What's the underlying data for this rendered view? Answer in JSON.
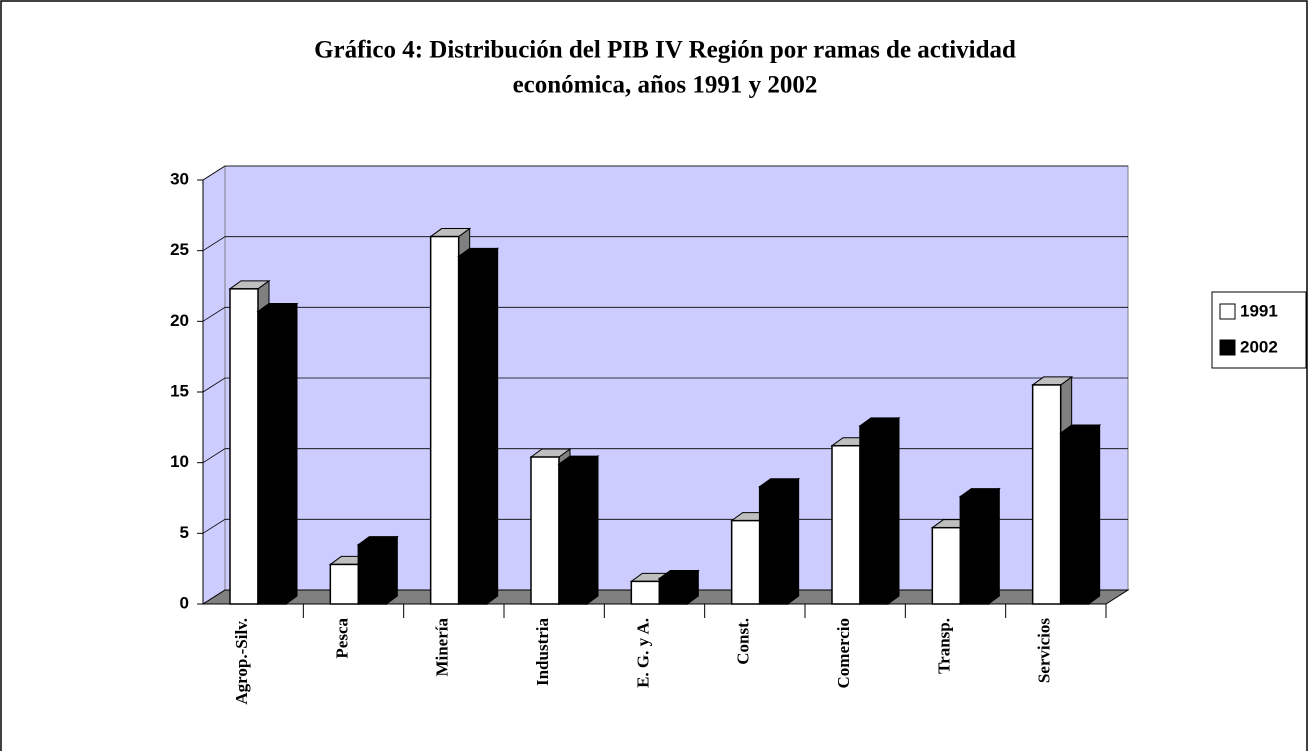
{
  "chart_data": {
    "type": "bar3d",
    "title": [
      "Gráfico 4: Distribución del PIB IV Región por ramas de actividad",
      "económica, años 1991 y 2002"
    ],
    "categories": [
      "Agrop.-Silv.",
      "Pesca",
      "Minería",
      "Industria",
      "E. G. y A.",
      "Const.",
      "Comercio",
      "Transp.",
      "Servicios"
    ],
    "series": [
      {
        "name": "1991",
        "color": "#ffffff",
        "values": [
          22.3,
          2.8,
          26.0,
          10.4,
          1.6,
          5.9,
          11.2,
          5.4,
          15.5
        ]
      },
      {
        "name": "2002",
        "color": "#000000",
        "values": [
          20.7,
          4.2,
          24.6,
          9.9,
          1.8,
          8.3,
          12.6,
          7.6,
          12.1
        ]
      }
    ],
    "ylim": [
      0,
      30
    ],
    "yticks": [
      0,
      5,
      10,
      15,
      20,
      25,
      30
    ],
    "grid": true,
    "legend": "right",
    "wall_color": "#ccccff",
    "floor_color": "#808080"
  }
}
